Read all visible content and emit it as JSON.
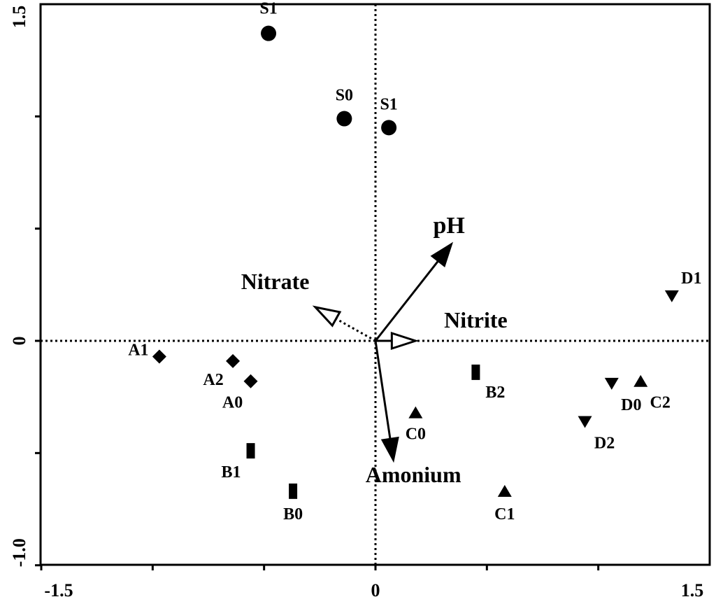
{
  "chart_data": {
    "type": "scatter",
    "title": "",
    "xlabel": "",
    "ylabel": "",
    "xlim": [
      -1.5,
      1.5
    ],
    "ylim": [
      -1.0,
      1.5
    ],
    "grid": false,
    "legend": "none",
    "x_tick_labels": [
      "-1.5",
      "0",
      "1.5"
    ],
    "y_tick_labels": [
      "-1.0",
      "0",
      "1.5"
    ],
    "zero_lines": "dotted",
    "groups": [
      {
        "marker": "circle",
        "points": [
          {
            "label": "S1",
            "x": -0.48,
            "y": 1.37
          },
          {
            "label": "S0",
            "x": -0.14,
            "y": 0.99
          },
          {
            "label": "S1",
            "x": 0.06,
            "y": 0.95
          }
        ]
      },
      {
        "marker": "diamond",
        "points": [
          {
            "label": "A1",
            "x": -0.97,
            "y": -0.07
          },
          {
            "label": "A2",
            "x": -0.64,
            "y": -0.09
          },
          {
            "label": "A0",
            "x": -0.56,
            "y": -0.18
          }
        ]
      },
      {
        "marker": "rect",
        "points": [
          {
            "label": "B1",
            "x": -0.56,
            "y": -0.49
          },
          {
            "label": "B0",
            "x": -0.37,
            "y": -0.67
          },
          {
            "label": "B2",
            "x": 0.45,
            "y": -0.14
          }
        ]
      },
      {
        "marker": "triangle-up",
        "points": [
          {
            "label": "C0",
            "x": 0.18,
            "y": -0.32
          },
          {
            "label": "C1",
            "x": 0.58,
            "y": -0.67
          },
          {
            "label": "C2",
            "x": 1.19,
            "y": -0.18
          }
        ]
      },
      {
        "marker": "triangle-down",
        "points": [
          {
            "label": "D1",
            "x": 1.33,
            "y": 0.2
          },
          {
            "label": "D0",
            "x": 1.06,
            "y": -0.19
          },
          {
            "label": "D2",
            "x": 0.94,
            "y": -0.36
          }
        ]
      }
    ],
    "vectors": [
      {
        "label": "pH",
        "x": 0.34,
        "y": 0.43,
        "style": "solid",
        "head": "filled"
      },
      {
        "label": "Nitrate",
        "x": -0.27,
        "y": 0.15,
        "style": "dotted",
        "head": "open"
      },
      {
        "label": "Nitrite",
        "x": 0.18,
        "y": 0.0,
        "style": "solid",
        "head": "open"
      },
      {
        "label": "Amonium",
        "x": 0.08,
        "y": -0.53,
        "style": "solid",
        "head": "filled"
      }
    ]
  }
}
